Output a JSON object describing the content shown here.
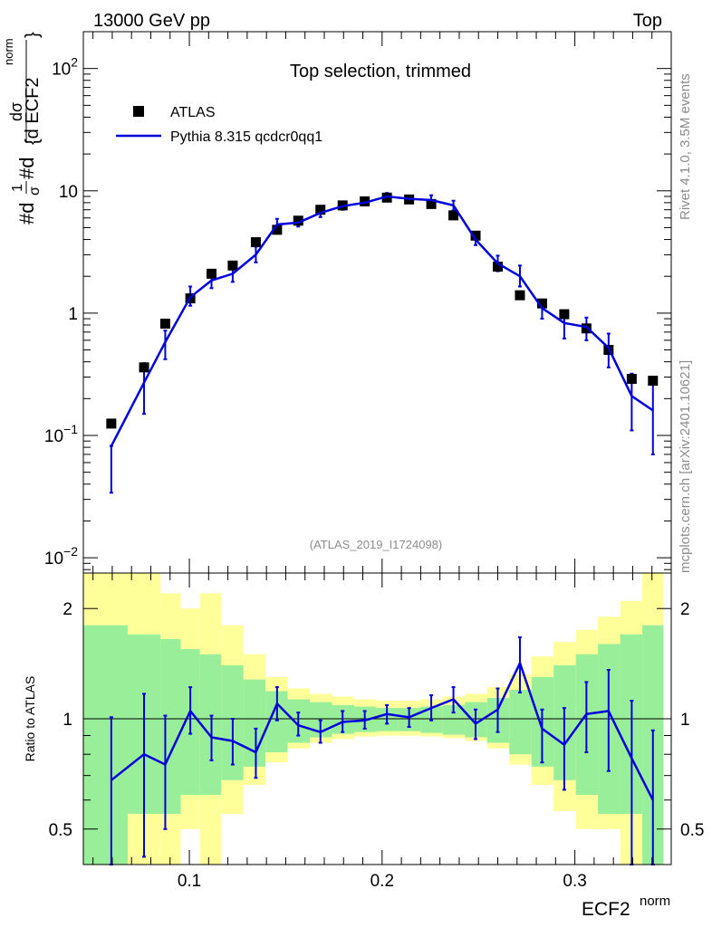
{
  "header": {
    "left": "13000 GeV pp",
    "right": "Top"
  },
  "side_labels": {
    "rivet": "Rivet 4.1.0,  3.5M events",
    "mcplots": "mcplots.cern.ch [arXiv:2401.10621]"
  },
  "chart_data": [
    {
      "type": "line",
      "panel": "main",
      "title": "Top selection, trimmed",
      "analysis_id": "(ATLAS_2019_I1724098)",
      "yscale": "log",
      "ylim": [
        0.0075,
        200
      ],
      "xlim": [
        0.045,
        0.35
      ],
      "ylabel": {
        "prefix": "#d",
        "frac_top": "1",
        "frac_bottom": "σ",
        "mid": " #d",
        "dsig": "dσ",
        "brace_top": "norm",
        "brace_bottom": "{d ECF2",
        "brace_close": "}"
      },
      "y_tick_labels": [
        {
          "base": "10",
          "exp": "2",
          "value": 100
        },
        {
          "base": "10",
          "exp": "",
          "value": 10
        },
        {
          "base": "1",
          "exp": "",
          "value": 1
        },
        {
          "base": "10",
          "exp": "−1",
          "value": 0.1
        },
        {
          "base": "10",
          "exp": "−2",
          "value": 0.01
        }
      ],
      "legend": {
        "placement": "top-left",
        "entries": [
          {
            "label": "ATLAS",
            "marker": "square",
            "color": "#000000"
          },
          {
            "label": "Pythia 8.315 qcdcr0qq1",
            "marker": "line",
            "color": "#0000dd"
          }
        ]
      },
      "x": [
        0.0595,
        0.0765,
        0.0875,
        0.1005,
        0.1115,
        0.1225,
        0.1345,
        0.1455,
        0.1565,
        0.168,
        0.1795,
        0.191,
        0.2025,
        0.214,
        0.2255,
        0.237,
        0.2485,
        0.26,
        0.2715,
        0.283,
        0.2945,
        0.306,
        0.3175,
        0.3295,
        0.3405
      ],
      "series": [
        {
          "name": "ATLAS",
          "color": "#000000",
          "values": [
            0.125,
            0.36,
            0.82,
            1.32,
            2.1,
            2.45,
            3.8,
            4.8,
            5.7,
            7.0,
            7.6,
            8.2,
            8.8,
            8.5,
            7.8,
            6.3,
            4.3,
            2.4,
            1.4,
            1.2,
            0.98,
            0.75,
            0.5,
            0.29,
            0.28
          ]
        },
        {
          "name": "Pythia 8.315 qcdcr0qq1",
          "color": "#0000dd",
          "values": [
            0.082,
            0.27,
            0.58,
            1.35,
            1.85,
            2.1,
            3.0,
            5.3,
            5.5,
            6.6,
            7.5,
            8.0,
            9.0,
            8.6,
            8.4,
            7.6,
            4.0,
            2.55,
            2.0,
            1.1,
            0.83,
            0.77,
            0.52,
            0.21,
            0.16
          ],
          "err_low": [
            0.034,
            0.15,
            0.42,
            1.15,
            1.6,
            1.8,
            2.6,
            4.8,
            5.1,
            6.1,
            7.0,
            7.6,
            8.5,
            8.1,
            7.7,
            6.9,
            3.6,
            2.2,
            1.65,
            0.9,
            0.62,
            0.6,
            0.36,
            0.11,
            0.07
          ],
          "err_high": [
            0.082,
            0.39,
            0.72,
            1.65,
            2.15,
            2.45,
            3.5,
            5.9,
            6.0,
            7.1,
            8.1,
            8.5,
            9.6,
            9.1,
            9.2,
            8.3,
            4.5,
            2.95,
            2.45,
            1.25,
            1.05,
            0.92,
            0.68,
            0.32,
            0.27
          ]
        }
      ]
    },
    {
      "type": "line",
      "panel": "ratio",
      "ylabel": "Ratio to ATLAS",
      "yscale": "log",
      "ylim": [
        0.4,
        2.5
      ],
      "xlabel": "ECF2",
      "xlabel_sup": "norm",
      "x_tick_labels": [
        "0.1",
        "0.2",
        "0.3"
      ],
      "x_tick_values": [
        0.1,
        0.2,
        0.3
      ],
      "y_tick_labels": [
        "2",
        "1",
        "0.5"
      ],
      "y_tick_values": [
        2,
        1,
        0.5
      ],
      "x_minor_step": 0.01,
      "reference_line": 1,
      "band_edges": [
        0.045,
        0.068,
        0.085,
        0.0955,
        0.1055,
        0.1165,
        0.128,
        0.1395,
        0.151,
        0.1625,
        0.174,
        0.1855,
        0.197,
        0.2085,
        0.22,
        0.2315,
        0.243,
        0.2545,
        0.266,
        0.2775,
        0.289,
        0.3005,
        0.312,
        0.3235,
        0.335,
        0.346
      ],
      "bands": [
        {
          "name": "total uncertainty",
          "color": "#ffff99",
          "low": [
            0.4,
            0.4,
            0.4,
            0.5,
            0.4,
            0.55,
            0.66,
            0.76,
            0.83,
            0.86,
            0.88,
            0.895,
            0.9,
            0.9,
            0.895,
            0.885,
            0.87,
            0.83,
            0.75,
            0.66,
            0.56,
            0.5,
            0.5,
            0.4,
            0.4
          ],
          "high": [
            2.5,
            2.5,
            2.2,
            2.0,
            2.2,
            1.8,
            1.5,
            1.3,
            1.21,
            1.17,
            1.15,
            1.13,
            1.12,
            1.12,
            1.13,
            1.15,
            1.17,
            1.22,
            1.32,
            1.48,
            1.62,
            1.75,
            1.9,
            2.1,
            2.5
          ]
        },
        {
          "name": "experimental uncertainty",
          "color": "#99ee99",
          "low": [
            0.4,
            0.55,
            0.55,
            0.62,
            0.62,
            0.68,
            0.74,
            0.81,
            0.86,
            0.89,
            0.91,
            0.92,
            0.925,
            0.925,
            0.915,
            0.905,
            0.89,
            0.86,
            0.8,
            0.74,
            0.68,
            0.62,
            0.55,
            0.55,
            0.4
          ],
          "high": [
            1.8,
            1.7,
            1.65,
            1.55,
            1.5,
            1.4,
            1.28,
            1.19,
            1.13,
            1.11,
            1.09,
            1.08,
            1.07,
            1.07,
            1.08,
            1.09,
            1.11,
            1.14,
            1.2,
            1.3,
            1.4,
            1.5,
            1.6,
            1.7,
            1.8
          ]
        }
      ],
      "x": [
        0.0595,
        0.0765,
        0.0875,
        0.1005,
        0.1115,
        0.1225,
        0.1345,
        0.1455,
        0.1565,
        0.168,
        0.1795,
        0.191,
        0.2025,
        0.214,
        0.2255,
        0.237,
        0.2485,
        0.26,
        0.2715,
        0.283,
        0.2945,
        0.306,
        0.3175,
        0.3295,
        0.3405
      ],
      "series": [
        {
          "name": "Pythia 8.315 qcdcr0qq1 / ATLAS",
          "color": "#0000dd",
          "values": [
            0.68,
            0.8,
            0.75,
            1.05,
            0.89,
            0.87,
            0.81,
            1.1,
            0.96,
            0.92,
            0.98,
            0.99,
            1.03,
            1.01,
            1.07,
            1.13,
            0.97,
            1.06,
            1.42,
            0.94,
            0.85,
            1.03,
            1.05,
            0.78,
            0.6
          ],
          "err_low": [
            0.28,
            0.42,
            0.5,
            0.91,
            0.77,
            0.75,
            0.69,
            0.99,
            0.9,
            0.86,
            0.92,
            0.94,
            0.97,
            0.95,
            0.99,
            1.04,
            0.88,
            0.92,
            1.18,
            0.76,
            0.64,
            0.81,
            0.72,
            0.39,
            0.25
          ],
          "err_high": [
            1.01,
            1.17,
            1.02,
            1.22,
            1.02,
            1.0,
            0.94,
            1.22,
            1.04,
            0.99,
            1.05,
            1.05,
            1.09,
            1.07,
            1.16,
            1.22,
            1.06,
            1.21,
            1.67,
            1.06,
            1.07,
            1.26,
            1.36,
            1.12,
            0.93
          ]
        }
      ]
    }
  ]
}
